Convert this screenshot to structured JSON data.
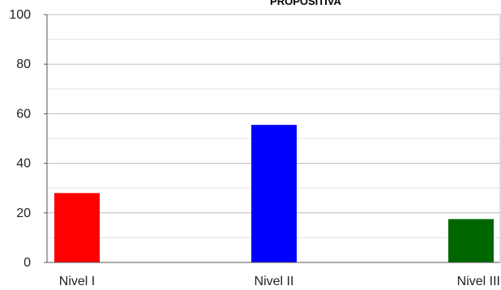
{
  "chart_data": {
    "type": "bar",
    "title": "PROPOSITIVA",
    "categories": [
      "Nivel I",
      "Nivel II",
      "Nivel III"
    ],
    "values": [
      28,
      55.5,
      17.5
    ],
    "colors": [
      "#ff0000",
      "#0000ff",
      "#006600"
    ],
    "ylim": [
      0,
      100
    ],
    "yticks": [
      "0",
      "20",
      "40",
      "60",
      "80",
      "100"
    ],
    "grid": true,
    "legend": "none"
  }
}
